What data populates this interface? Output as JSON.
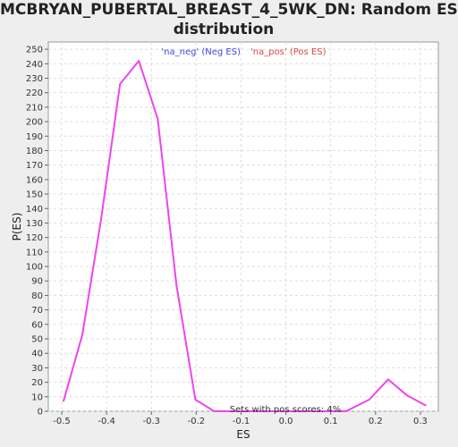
{
  "chart_data": {
    "type": "line",
    "title_line1": "MCBRYAN_PUBERTAL_BREAST_4_5WK_DN: Random ES",
    "title_line2": "distribution",
    "xlabel": "ES",
    "ylabel": "P(ES)",
    "xlim": [
      -0.53,
      0.34
    ],
    "ylim": [
      0,
      255
    ],
    "x_ticks": [
      -0.5,
      -0.4,
      -0.3,
      -0.2,
      -0.1,
      0.0,
      0.1,
      0.2,
      0.3
    ],
    "x_tick_labels": [
      "-0.5",
      "-0.4",
      "-0.3",
      "-0.2",
      "-0.1",
      "0.0",
      "0.1",
      "0.2",
      "0.3"
    ],
    "y_ticks": [
      0,
      10,
      20,
      30,
      40,
      50,
      60,
      70,
      80,
      90,
      100,
      110,
      120,
      130,
      140,
      150,
      160,
      170,
      180,
      190,
      200,
      210,
      220,
      230,
      240,
      250
    ],
    "grid": true,
    "legend": [
      {
        "label": "'na_neg' (Neg ES)",
        "color": "#4444dd"
      },
      {
        "label": "'na_pos' (Pos ES)",
        "color": "#dd4444"
      }
    ],
    "legend_placement": "top-center",
    "series": [
      {
        "color": "#ee44ee",
        "x": [
          -0.496,
          -0.454,
          -0.412,
          -0.37,
          -0.328,
          -0.286,
          -0.244,
          -0.202,
          -0.16,
          -0.118,
          -0.076,
          -0.034,
          0.008,
          0.05,
          0.092,
          0.134,
          0.186,
          0.228,
          0.27,
          0.312
        ],
        "y": [
          7,
          53,
          133,
          226,
          242,
          202,
          87,
          8,
          0,
          0,
          0,
          0,
          0,
          0,
          0,
          0,
          8,
          22,
          11,
          4
        ]
      }
    ],
    "annotation": "Sets with pos scores: 4%",
    "colors": {
      "background": "#eeeeee",
      "plot_background": "#ffffff",
      "grid": "#dddddd",
      "line": "#ee44ee"
    }
  }
}
